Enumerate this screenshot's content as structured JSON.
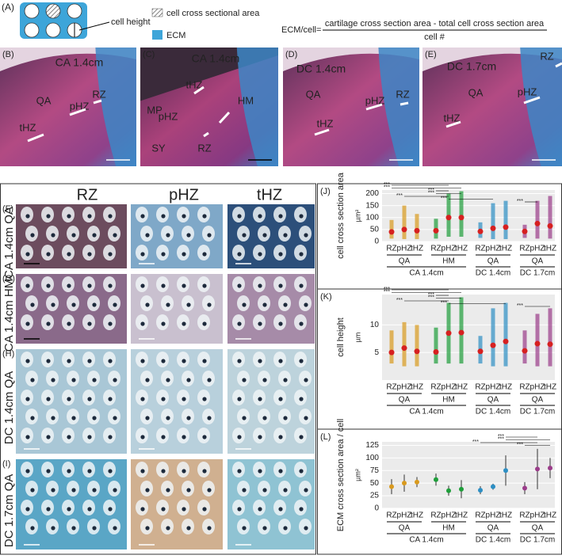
{
  "panel_a": {
    "label": "(A)",
    "cell_height": "cell height",
    "legend": [
      "cell cross sectional area",
      "ECM"
    ],
    "equation": {
      "lhs": "ECM/cell=",
      "numerator": "cartilage cross section area - total cell cross section area",
      "denominator": "cell #"
    }
  },
  "photos": [
    {
      "label": "(B)",
      "regions": [
        "CA 1.4cm",
        "QA",
        "pHZ",
        "RZ",
        "tHZ"
      ]
    },
    {
      "label": "(C)",
      "regions": [
        "CA 1.4cm",
        "tHZ",
        "MP",
        "HM",
        "pHZ",
        "SY",
        "RZ"
      ]
    },
    {
      "label": "(D)",
      "regions": [
        "DC 1.4cm",
        "QA",
        "pHZ",
        "RZ",
        "tHZ"
      ]
    },
    {
      "label": "(E)",
      "regions": [
        "DC 1.7cm",
        "QA",
        "pHZ",
        "RZ",
        "tHZ"
      ]
    }
  ],
  "histology": {
    "columns": [
      "RZ",
      "pHZ",
      "tHZ"
    ],
    "rows": [
      {
        "label": "(F)",
        "title": "CA 1.4cm QA"
      },
      {
        "label": "(G)",
        "title": "CA 1.4cm HM"
      },
      {
        "label": "(H)",
        "title": "DC 1.4cm QA"
      },
      {
        "label": "(I)",
        "title": "DC 1.7cm QA"
      }
    ]
  },
  "plots": [
    {
      "label": "(J)",
      "type": "strip",
      "y_label": "cell cross section area",
      "unit": "µm²",
      "categories": [
        "RZ",
        "pHZ",
        "tHZ",
        "RZ",
        "pHZ",
        "tHZ",
        "RZ",
        "pHZ",
        "tHZ",
        "RZ",
        "pHZ",
        "tHZ"
      ],
      "groups": [
        "QA",
        "HM",
        "QA",
        "QA"
      ],
      "stages": [
        "CA 1.4cm",
        "DC 1.4cm",
        "DC 1.7cm"
      ],
      "values": [
        40,
        50,
        45,
        45,
        100,
        100,
        42,
        55,
        60,
        42,
        75,
        65
      ],
      "min": [
        12,
        10,
        10,
        12,
        20,
        20,
        15,
        10,
        10,
        15,
        12,
        12
      ],
      "max": [
        90,
        150,
        115,
        95,
        200,
        210,
        80,
        160,
        170,
        70,
        170,
        190
      ],
      "ylim": [
        0,
        215
      ],
      "yticks": [
        0,
        50,
        100,
        150,
        200
      ],
      "significance": [
        "***",
        "***",
        "***",
        "***",
        "***",
        "***",
        "***"
      ]
    },
    {
      "label": "(K)",
      "type": "strip",
      "y_label": "cell height",
      "unit": "µm",
      "categories": [
        "RZ",
        "pHZ",
        "tHZ",
        "RZ",
        "pHZ",
        "tHZ",
        "RZ",
        "pHZ",
        "tHZ",
        "RZ",
        "pHZ",
        "tHZ"
      ],
      "groups": [
        "QA",
        "HM",
        "QA",
        "QA"
      ],
      "stages": [
        "CA 1.4cm",
        "DC 1.4cm",
        "DC 1.7cm"
      ],
      "values": [
        5,
        5.8,
        5.2,
        5.1,
        8.5,
        8.6,
        5.2,
        6.3,
        7,
        5.3,
        6.6,
        6.5
      ],
      "min": [
        3,
        2.5,
        2.5,
        3,
        3,
        3,
        3,
        2.5,
        2.5,
        3,
        2.5,
        2.5
      ],
      "max": [
        9,
        10.5,
        10,
        9.5,
        14,
        15,
        8,
        13,
        14,
        9,
        12,
        13
      ],
      "ylim": [
        0,
        15.5
      ],
      "yticks": [
        5,
        10
      ],
      "significance": [
        "***",
        "***",
        "***",
        "***",
        "***",
        "***",
        "***"
      ]
    },
    {
      "label": "(L)",
      "type": "errorbar",
      "y_label": "ECM cross section area / cell",
      "unit": "µm²",
      "categories": [
        "RZ",
        "pHZ",
        "tHZ",
        "RZ",
        "pHZ",
        "tHZ",
        "RZ",
        "pHZ",
        "tHZ",
        "RZ",
        "pHZ",
        "tHZ"
      ],
      "groups": [
        "QA",
        "HM",
        "QA",
        "QA"
      ],
      "stages": [
        "CA 1.4cm",
        "DC 1.4cm",
        "DC 1.7cm"
      ],
      "values": [
        43,
        50,
        52,
        57,
        35,
        38,
        36,
        43,
        75,
        40,
        78,
        80
      ],
      "errors": [
        15,
        17,
        10,
        12,
        10,
        18,
        8,
        6,
        30,
        12,
        40,
        20
      ],
      "ylim": [
        0,
        132
      ],
      "yticks": [
        0,
        25,
        50,
        75,
        100,
        125
      ],
      "significance": [
        "***",
        "***",
        "***",
        "***"
      ]
    }
  ]
}
